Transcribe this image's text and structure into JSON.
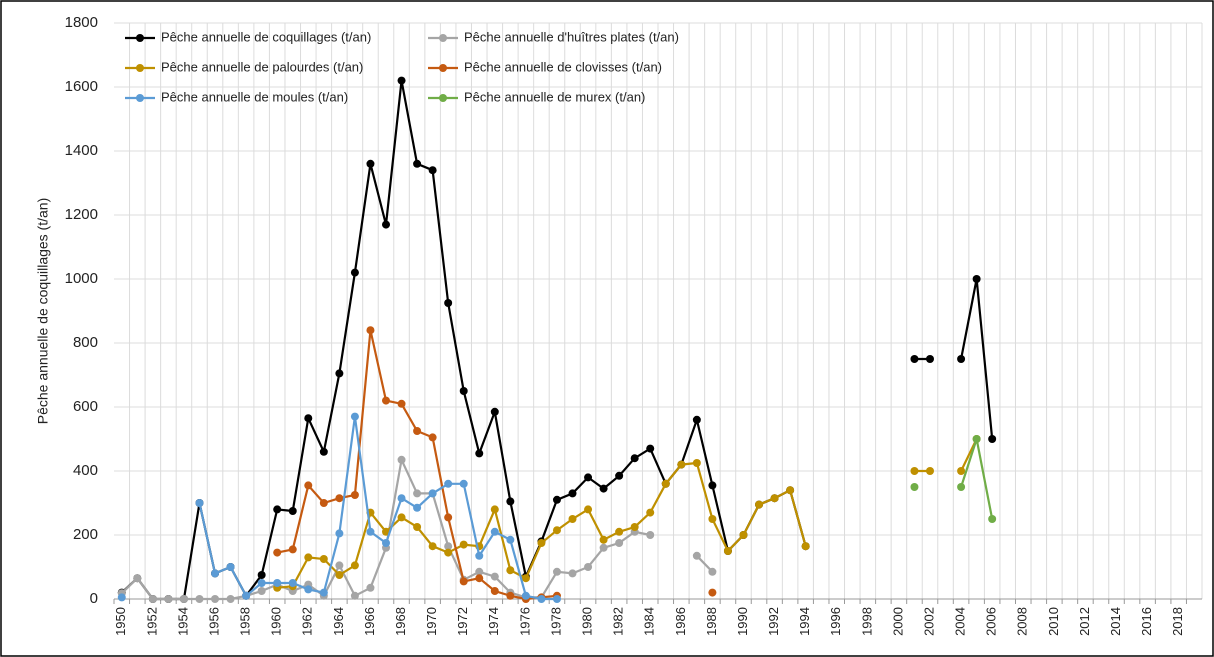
{
  "chart_data": {
    "type": "line",
    "y_label": "Pêche annuelle de coquillages (t/an)",
    "categories": [
      "1950",
      null,
      "1952",
      null,
      "1954",
      null,
      "1956",
      null,
      "1958",
      null,
      "1960",
      null,
      "1962",
      null,
      "1964",
      null,
      "1966",
      null,
      "1968",
      null,
      "1970",
      null,
      "1972",
      null,
      "1974",
      null,
      "1976",
      null,
      "1978",
      null,
      "1980",
      null,
      "1982",
      null,
      "1984",
      null,
      "1986",
      null,
      "1988",
      null,
      "1990",
      null,
      "1992",
      null,
      "1994",
      null,
      "1996",
      null,
      "1998",
      null,
      "2000",
      null,
      "2002",
      null,
      "2004",
      null,
      "2006",
      null,
      "2008",
      null,
      "2010",
      null,
      "2012",
      null,
      "2014",
      null,
      "2016",
      null,
      "2018",
      null
    ],
    "ylim": [
      0,
      1800
    ],
    "yticks": [
      0,
      200,
      400,
      600,
      800,
      1000,
      1200,
      1400,
      1600,
      1800
    ],
    "grid": true,
    "legend": "top-left",
    "series": [
      {
        "name": "Pêche annuelle de coquillages (t/an)",
        "color": "#000000",
        "values": [
          20,
          65,
          0,
          0,
          0,
          300,
          80,
          100,
          10,
          75,
          280,
          275,
          565,
          460,
          705,
          1020,
          1360,
          1170,
          1620,
          1360,
          1340,
          925,
          650,
          455,
          585,
          305,
          70,
          180,
          310,
          330,
          380,
          345,
          385,
          440,
          470,
          360,
          420,
          560,
          355,
          150,
          200,
          295,
          315,
          340,
          165,
          null,
          null,
          null,
          null,
          null,
          null,
          750,
          750,
          null,
          750,
          1000,
          500,
          null,
          null,
          null,
          null,
          null,
          null,
          null,
          null,
          null,
          null,
          null,
          null,
          null
        ]
      },
      {
        "name": "Pêche annuelle d'huîtres plates (t/an)",
        "color": "#a5a5a5",
        "values": [
          18,
          65,
          0,
          0,
          0,
          0,
          0,
          0,
          10,
          25,
          45,
          25,
          45,
          10,
          105,
          10,
          35,
          160,
          435,
          330,
          330,
          165,
          60,
          85,
          70,
          20,
          5,
          5,
          85,
          80,
          100,
          160,
          175,
          210,
          200,
          null,
          null,
          135,
          85,
          null,
          null,
          null,
          null,
          null,
          null,
          null,
          null,
          null,
          null,
          null,
          null,
          null,
          null,
          null,
          null,
          null,
          null,
          null,
          null,
          null,
          null,
          null,
          null,
          null,
          null,
          null,
          null,
          null,
          null,
          null
        ]
      },
      {
        "name": "Pêche annuelle de palourdes (t/an)",
        "color": "#bf9000",
        "values": [
          null,
          null,
          null,
          null,
          null,
          null,
          null,
          null,
          null,
          null,
          35,
          40,
          130,
          125,
          75,
          105,
          270,
          210,
          255,
          225,
          165,
          145,
          170,
          165,
          280,
          90,
          65,
          175,
          215,
          250,
          280,
          185,
          210,
          225,
          270,
          360,
          420,
          425,
          250,
          150,
          200,
          295,
          315,
          340,
          165,
          null,
          null,
          null,
          null,
          null,
          null,
          400,
          400,
          null,
          400,
          500,
          null,
          null,
          null,
          null,
          null,
          null,
          null,
          null,
          null,
          null,
          null,
          null,
          null,
          null
        ]
      },
      {
        "name": "Pêche annuelle de clovisses (t/an)",
        "color": "#c55a11",
        "values": [
          null,
          null,
          null,
          null,
          null,
          null,
          null,
          null,
          null,
          null,
          145,
          155,
          355,
          300,
          315,
          325,
          840,
          620,
          610,
          525,
          505,
          255,
          55,
          65,
          25,
          10,
          0,
          5,
          10,
          null,
          null,
          null,
          null,
          null,
          null,
          null,
          null,
          null,
          20,
          null,
          null,
          null,
          null,
          null,
          null,
          null,
          null,
          null,
          null,
          null,
          null,
          null,
          null,
          null,
          null,
          null,
          null,
          null,
          null,
          null,
          null,
          null,
          null,
          null,
          null,
          null,
          null,
          null,
          null,
          null
        ]
      },
      {
        "name": "Pêche annuelle de moules (t/an)",
        "color": "#5b9bd5",
        "values": [
          5,
          null,
          null,
          null,
          null,
          300,
          80,
          100,
          10,
          50,
          50,
          50,
          30,
          20,
          205,
          570,
          210,
          175,
          315,
          285,
          330,
          360,
          360,
          135,
          210,
          185,
          10,
          0,
          0,
          null,
          null,
          null,
          null,
          null,
          null,
          null,
          null,
          null,
          null,
          null,
          null,
          null,
          null,
          null,
          null,
          null,
          null,
          null,
          null,
          null,
          null,
          null,
          null,
          null,
          null,
          null,
          null,
          null,
          null,
          null,
          null,
          null,
          null,
          null,
          null,
          null,
          null,
          null,
          null,
          null
        ]
      },
      {
        "name": "Pêche annuelle de murex (t/an)",
        "color": "#70ad47",
        "values": [
          null,
          null,
          null,
          null,
          null,
          null,
          null,
          null,
          null,
          null,
          null,
          null,
          null,
          null,
          null,
          null,
          null,
          null,
          null,
          null,
          null,
          null,
          null,
          null,
          null,
          null,
          null,
          null,
          null,
          null,
          null,
          null,
          null,
          null,
          null,
          null,
          null,
          null,
          null,
          null,
          null,
          null,
          null,
          null,
          null,
          null,
          null,
          null,
          null,
          null,
          null,
          350,
          null,
          null,
          350,
          500,
          250,
          null,
          null,
          null,
          null,
          null,
          null,
          null,
          null,
          null,
          null,
          null,
          null,
          null
        ]
      }
    ]
  }
}
